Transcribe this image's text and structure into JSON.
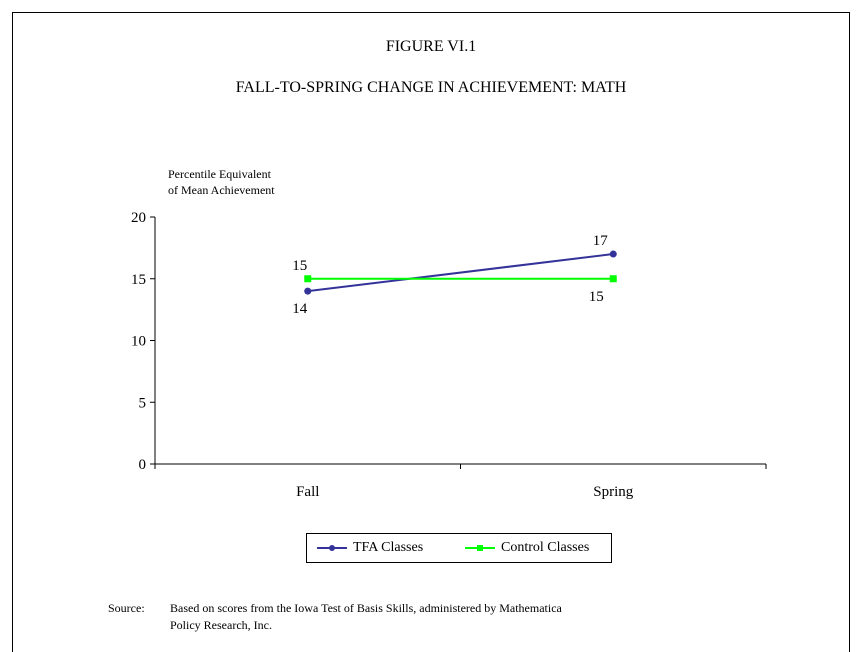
{
  "figure_label": "FIGURE VI.1",
  "chart_data": {
    "type": "line",
    "title": "FALL-TO-SPRING CHANGE IN ACHIEVEMENT:  MATH",
    "ylabel": "Percentile Equivalent\nof Mean Achievement",
    "xlabel": "",
    "categories": [
      "Fall",
      "Spring"
    ],
    "ylim": [
      0,
      20
    ],
    "yticks": [
      0,
      5,
      10,
      15,
      20
    ],
    "grid": false,
    "legend_position": "bottom",
    "series": [
      {
        "name": "TFA Classes",
        "values": [
          14,
          17
        ],
        "color": "#333399",
        "marker": "circle",
        "labels": [
          "14",
          "17"
        ],
        "label_side": [
          "below",
          "above"
        ]
      },
      {
        "name": "Control Classes",
        "values": [
          15,
          15
        ],
        "color": "#00ff00",
        "marker": "square",
        "labels": [
          "15",
          "15"
        ],
        "label_side": [
          "above",
          "below"
        ]
      }
    ]
  },
  "source": {
    "label": "Source:",
    "text": "Based on scores from the Iowa Test of Basis Skills, administered by Mathematica\nPolicy Research, Inc."
  }
}
